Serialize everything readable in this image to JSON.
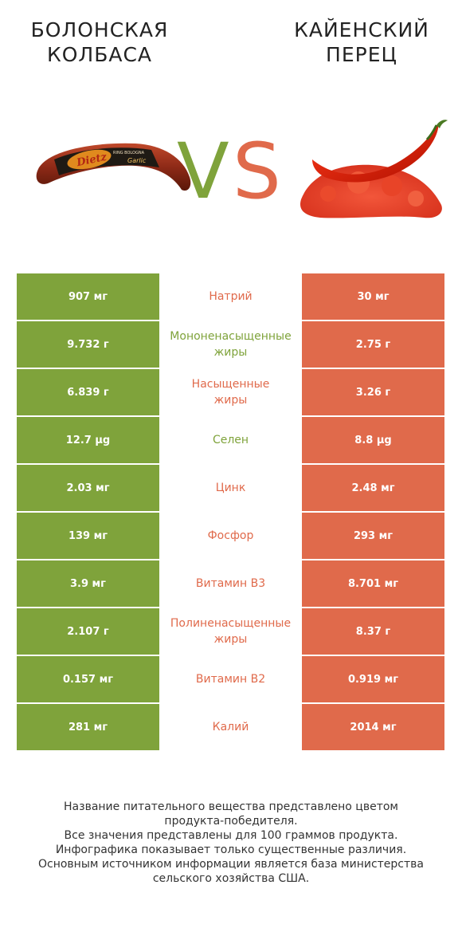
{
  "header": {
    "left_title_lines": [
      "БОЛОНСКАЯ",
      "КОЛБАСА"
    ],
    "right_title_lines": [
      "КАЙЕНСКИЙ",
      "ПЕРЕЦ"
    ],
    "vs_v": "V",
    "vs_s": "S",
    "sausage_label_brand": "Dietz",
    "sausage_label_product": "RING BOLOGNA",
    "sausage_label_flavor": "Garlic"
  },
  "colors": {
    "left_accent": "#7fa33b",
    "right_accent": "#e06a4b"
  },
  "rows": [
    {
      "left": "907 мг",
      "name_lines": [
        "Натрий"
      ],
      "right": "30 мг",
      "winner": "right"
    },
    {
      "left": "9.732 г",
      "name_lines": [
        "Мононенасыщенные",
        "жиры"
      ],
      "right": "2.75 г",
      "winner": "left"
    },
    {
      "left": "6.839 г",
      "name_lines": [
        "Насыщенные",
        "жиры"
      ],
      "right": "3.26 г",
      "winner": "right"
    },
    {
      "left": "12.7 µg",
      "name_lines": [
        "Селен"
      ],
      "right": "8.8 µg",
      "winner": "left"
    },
    {
      "left": "2.03 мг",
      "name_lines": [
        "Цинк"
      ],
      "right": "2.48 мг",
      "winner": "right"
    },
    {
      "left": "139 мг",
      "name_lines": [
        "Фосфор"
      ],
      "right": "293 мг",
      "winner": "right"
    },
    {
      "left": "3.9 мг",
      "name_lines": [
        "Витамин B3"
      ],
      "right": "8.701 мг",
      "winner": "right"
    },
    {
      "left": "2.107 г",
      "name_lines": [
        "Полиненасыщенные",
        "жиры"
      ],
      "right": "8.37 г",
      "winner": "right"
    },
    {
      "left": "0.157 мг",
      "name_lines": [
        "Витамин B2"
      ],
      "right": "0.919 мг",
      "winner": "right"
    },
    {
      "left": "281 мг",
      "name_lines": [
        "Калий"
      ],
      "right": "2014 мг",
      "winner": "right"
    }
  ],
  "footer": {
    "lines": [
      "Название питательного вещества представлено цветом",
      "продукта-победителя.",
      "Все значения представлены для 100 граммов продукта.",
      "Инфографика показывает только существенные различия.",
      "Основным источником информации является база министерства",
      "сельского хозяйства США."
    ]
  }
}
